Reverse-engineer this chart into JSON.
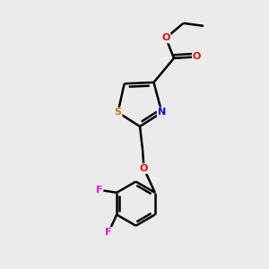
{
  "bg_color": "#ebebeb",
  "bond_color": "#000000",
  "bond_width": 1.8,
  "atom_colors": {
    "S": "#b8860b",
    "N": "#0000ff",
    "O": "#ff0000",
    "F": "#ff00cc",
    "C": "#000000"
  },
  "figsize": [
    3.0,
    3.0
  ],
  "dpi": 100
}
